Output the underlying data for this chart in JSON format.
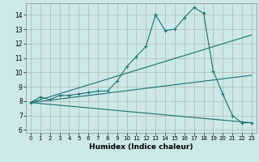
{
  "title": "",
  "xlabel": "Humidex (Indice chaleur)",
  "background_color": "#cce8e8",
  "grid_color": "#aaaaaa",
  "line_color": "#1a7070",
  "xlim": [
    -0.5,
    23.5
  ],
  "ylim": [
    5.8,
    14.8
  ],
  "yticks": [
    6,
    7,
    8,
    9,
    10,
    11,
    12,
    13,
    14
  ],
  "xticks": [
    0,
    1,
    2,
    3,
    4,
    5,
    6,
    7,
    8,
    9,
    10,
    11,
    12,
    13,
    14,
    15,
    16,
    17,
    18,
    19,
    20,
    21,
    22,
    23
  ],
  "main_x": [
    0,
    1,
    2,
    3,
    4,
    5,
    6,
    7,
    8,
    9,
    10,
    11,
    12,
    13,
    14,
    15,
    16,
    17,
    18,
    19,
    20,
    21,
    22,
    23
  ],
  "main_y": [
    7.9,
    8.3,
    8.1,
    8.4,
    8.4,
    8.5,
    8.6,
    8.7,
    8.7,
    9.4,
    10.4,
    11.1,
    11.8,
    14.0,
    12.9,
    13.0,
    13.8,
    14.5,
    14.1,
    10.1,
    8.5,
    7.0,
    6.5,
    6.5
  ],
  "upper_line_x": [
    0,
    23
  ],
  "upper_line_y": [
    7.9,
    12.6
  ],
  "mid_line_x": [
    0,
    23
  ],
  "mid_line_y": [
    7.9,
    9.8
  ],
  "lower_line_x": [
    0,
    23
  ],
  "lower_line_y": [
    7.9,
    6.5
  ]
}
